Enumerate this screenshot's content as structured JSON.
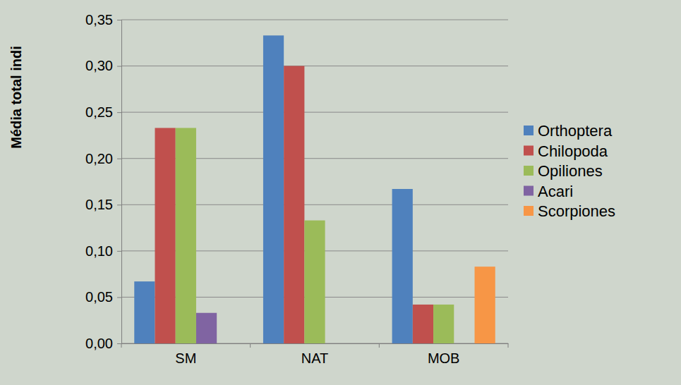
{
  "chart_data": {
    "type": "bar",
    "y_label": "Média total indi",
    "categories": [
      "SM",
      "NAT",
      "MOB"
    ],
    "series": [
      {
        "name": "Orthoptera",
        "color": "#4f81bd",
        "values": [
          0.067,
          0.333,
          0.167
        ]
      },
      {
        "name": "Chilopoda",
        "color": "#c0504d",
        "values": [
          0.233,
          0.3,
          0.042
        ]
      },
      {
        "name": "Opiliones",
        "color": "#9bbb59",
        "values": [
          0.233,
          0.133,
          0.042
        ]
      },
      {
        "name": "Acari",
        "color": "#8064a2",
        "values": [
          0.033,
          0,
          0
        ]
      },
      {
        "name": "Scorpiones",
        "color": "#f79646",
        "values": [
          0,
          0,
          0.083
        ]
      }
    ],
    "ylim": [
      0,
      0.35
    ],
    "yticks": [
      {
        "value": 0,
        "label": "0,00"
      },
      {
        "value": 0.05,
        "label": "0,05"
      },
      {
        "value": 0.1,
        "label": "0,10"
      },
      {
        "value": 0.15,
        "label": "0,15"
      },
      {
        "value": 0.2,
        "label": "0,20"
      },
      {
        "value": 0.25,
        "label": "0,25"
      },
      {
        "value": 0.3,
        "label": "0,30"
      },
      {
        "value": 0.35,
        "label": "0,35"
      }
    ],
    "grid": true,
    "legend": "right"
  }
}
